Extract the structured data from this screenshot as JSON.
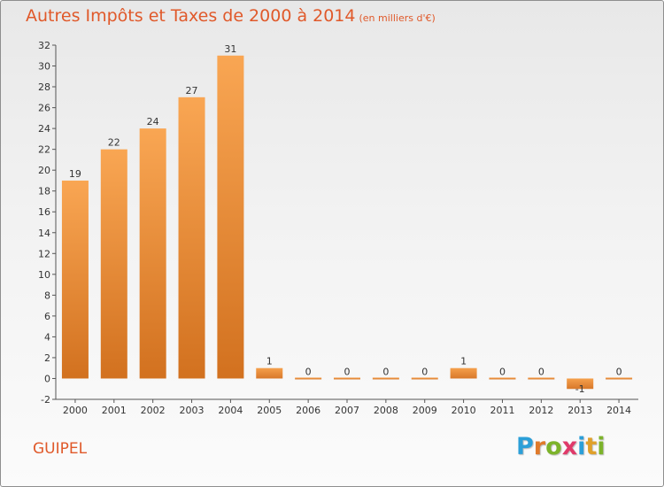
{
  "header": {
    "title": "Autres Impôts et Taxes de 2000 à 2014",
    "subtitle": "(en milliers d'€)"
  },
  "footer": {
    "commune": "GUIPEL",
    "logo": [
      "P",
      "r",
      "o",
      "x",
      "i",
      "t",
      "i"
    ]
  },
  "colors": {
    "title": "#e0592a",
    "bar_light": "#f9a653",
    "bar_dark": "#d2711f",
    "logo": [
      "#2b9fd8",
      "#e07a2a",
      "#7cb32a",
      "#e03a6a",
      "#2b9fd8",
      "#e0a02a",
      "#7cb32a"
    ]
  },
  "chart_data": {
    "type": "bar",
    "categories": [
      "2000",
      "2001",
      "2002",
      "2003",
      "2004",
      "2005",
      "2006",
      "2007",
      "2008",
      "2009",
      "2010",
      "2011",
      "2012",
      "2013",
      "2014"
    ],
    "values": [
      19,
      22,
      24,
      27,
      31,
      1,
      0,
      0,
      0,
      0,
      1,
      0,
      0,
      -1,
      0
    ],
    "value_labels": [
      "19",
      "22",
      "24",
      "27",
      "31",
      "1",
      "0",
      "0",
      "0",
      "0",
      "1",
      "0",
      "0",
      "-1",
      "0"
    ],
    "ylim": [
      -2,
      32
    ],
    "yticks": [
      -2,
      0,
      2,
      4,
      6,
      8,
      10,
      12,
      14,
      16,
      18,
      20,
      22,
      24,
      26,
      28,
      30,
      32
    ],
    "grid": false,
    "xlabel": "",
    "ylabel": ""
  }
}
